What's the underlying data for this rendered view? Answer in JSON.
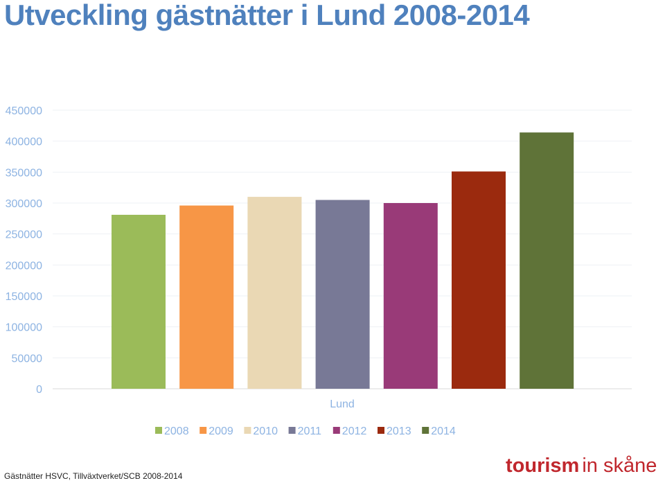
{
  "page": {
    "title": "Utveckling gästnätter i Lund 2008-2014",
    "source_note": "Gästnätter HSVC, Tillväxtverket/SCB 2008-2014",
    "logo": {
      "part1": "tourism",
      "part2": "in skåne",
      "color": "#c0272d"
    }
  },
  "chart_data": {
    "type": "bar",
    "title": "",
    "xlabel": "",
    "ylabel": "",
    "categories": [
      "Lund"
    ],
    "ylim": [
      0,
      450000
    ],
    "yticks": [
      "0",
      "50000",
      "100000",
      "150000",
      "200000",
      "250000",
      "300000",
      "350000",
      "400000",
      "450000"
    ],
    "grid": true,
    "legend_position": "bottom",
    "series": [
      {
        "name": "2008",
        "values": [
          281000
        ],
        "color": "#9bbb59"
      },
      {
        "name": "2009",
        "values": [
          296000
        ],
        "color": "#f79646"
      },
      {
        "name": "2010",
        "values": [
          310000
        ],
        "color": "#ead8b4"
      },
      {
        "name": "2011",
        "values": [
          305000
        ],
        "color": "#787996"
      },
      {
        "name": "2012",
        "values": [
          300000
        ],
        "color": "#993a78"
      },
      {
        "name": "2013",
        "values": [
          351000
        ],
        "color": "#9b2a0e"
      },
      {
        "name": "2014",
        "values": [
          414000
        ],
        "color": "#5f7338"
      }
    ]
  }
}
